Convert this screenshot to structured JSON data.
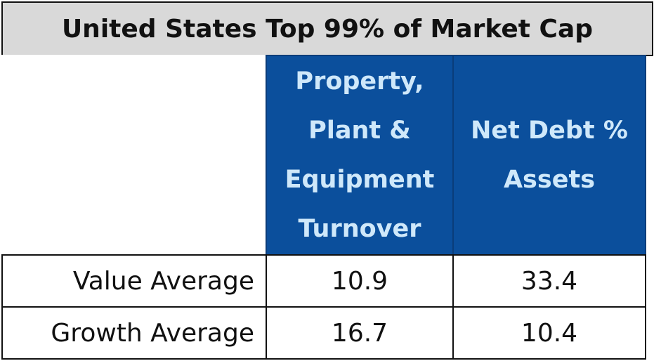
{
  "title": "United States Top 99% of Market Cap",
  "table": {
    "header": [
      "Property,\nPlant &\nEquipment\nTurnover",
      "Net Debt %\nAssets"
    ],
    "rows": [
      [
        "Value Average",
        10.9,
        33.4
      ],
      [
        "Growth Average",
        16.7,
        10.4
      ]
    ]
  }
}
